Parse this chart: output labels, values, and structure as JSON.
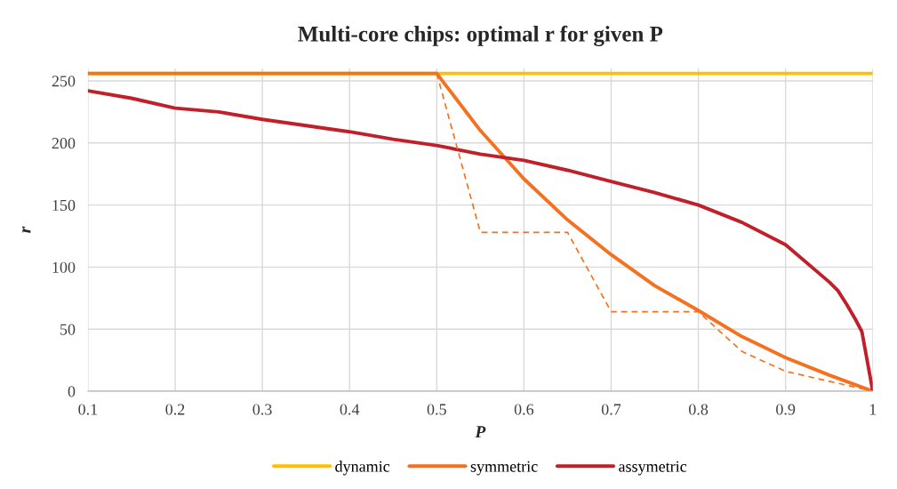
{
  "chart_data": {
    "type": "line",
    "title": "Multi-core chips: optimal r for given P",
    "xlabel": "P",
    "ylabel": "r",
    "xlim": [
      0.1,
      1
    ],
    "xticks": [
      0.1,
      0.2,
      0.3,
      0.4,
      0.5,
      0.6,
      0.7,
      0.8,
      0.9,
      1
    ],
    "ylim": [
      0,
      260
    ],
    "yticks": [
      0,
      50,
      100,
      150,
      200,
      250
    ],
    "grid": true,
    "legend": "bottom",
    "marker": "none",
    "series": [
      {
        "name": "dynamic",
        "color": "#ffc000",
        "x": [
          0.1,
          1
        ],
        "values": [
          256,
          256
        ]
      },
      {
        "name": "symmetric",
        "color": "#f4711f",
        "x": [
          0.1,
          0.5,
          0.55,
          0.6,
          0.65,
          0.7,
          0.75,
          0.8,
          0.85,
          0.9,
          0.95,
          1
        ],
        "values": [
          256,
          256,
          210,
          171,
          138,
          110,
          85,
          65,
          44,
          27,
          13,
          0
        ]
      },
      {
        "name": "assymetric",
        "color": "#c0202a",
        "x": [
          0.1,
          0.15,
          0.2,
          0.25,
          0.3,
          0.35,
          0.4,
          0.45,
          0.5,
          0.55,
          0.6,
          0.65,
          0.7,
          0.75,
          0.8,
          0.85,
          0.9,
          0.95,
          0.96,
          0.97,
          0.98,
          0.9875,
          1
        ],
        "values": [
          242,
          236,
          228,
          225,
          219,
          214,
          209,
          203,
          198,
          191,
          186,
          178,
          169,
          160,
          150,
          136,
          118,
          88,
          81,
          70,
          58,
          48,
          0
        ]
      },
      {
        "color": "#f4711f",
        "line_style": "dashed",
        "x": [
          0.5,
          0.55,
          0.65,
          0.7,
          0.8,
          0.85,
          0.9,
          0.95,
          0.975,
          1
        ],
        "values": [
          256,
          128,
          128,
          64,
          64,
          32,
          16,
          8,
          4,
          0
        ]
      }
    ]
  }
}
